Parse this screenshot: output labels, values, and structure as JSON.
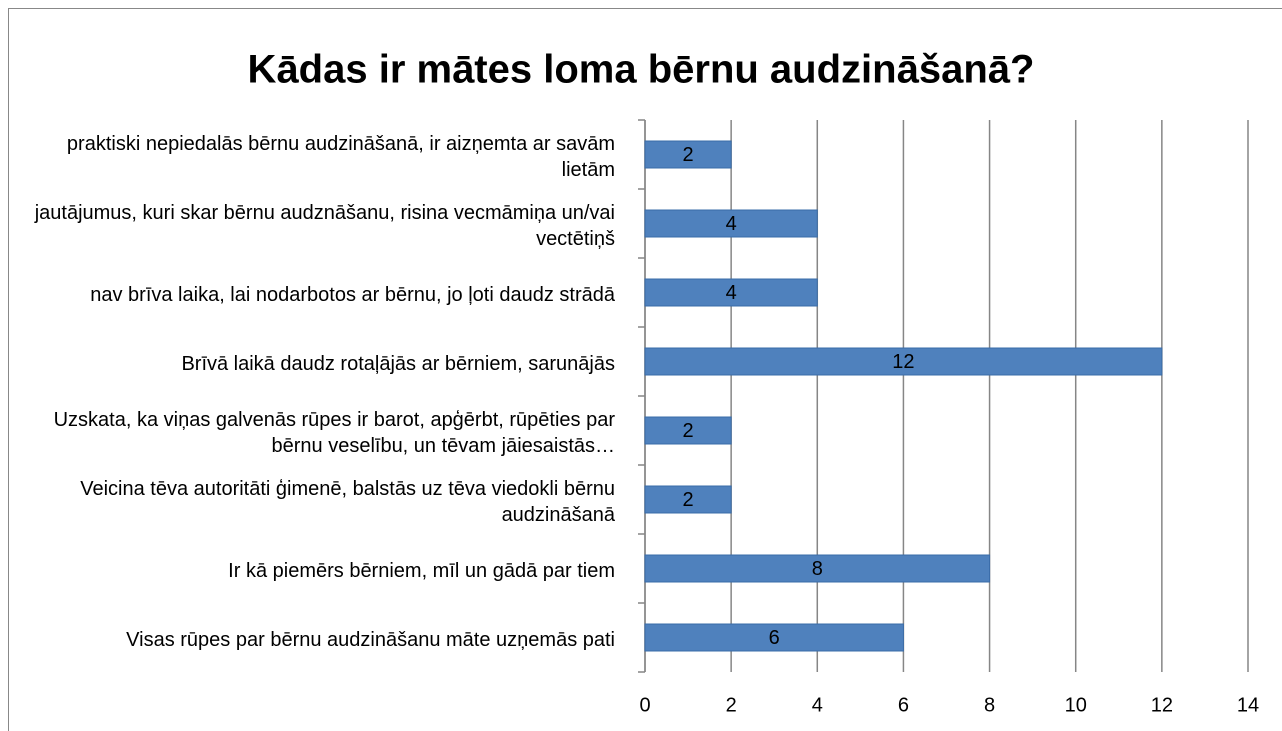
{
  "chart_data": {
    "type": "bar",
    "orientation": "horizontal",
    "title": "Kādas ir mātes loma bērnu audzināšanā?",
    "categories": [
      "praktiski nepiedalās bērnu audzināšanā, ir aizņemta ar savām lietām",
      "jautājumus, kuri skar bērnu audznāšanu, risina vecmāmiņa un/vai vectētiņš",
      "nav brīva laika, lai nodarbotos ar bērnu, jo ļoti daudz strādā",
      "Brīvā laikā daudz rotaļājās ar bērniem, sarunājās",
      "Uzskata, ka viņas galvenās rūpes ir barot, apģērbt, rūpēties par  bērnu veselību, un tēvam jāiesaistās…",
      "Veicina tēva autoritāti ģimenē, balstās uz tēva viedokli bērnu audzināšanā",
      "Ir kā piemērs bērniem, mīl un gādā par tiem",
      "Visas rūpes par bērnu audzināšanu māte uzņemās pati"
    ],
    "values": [
      2,
      4,
      4,
      12,
      2,
      2,
      8,
      6
    ],
    "color": "#4f81bd",
    "xlim": [
      0,
      14
    ],
    "xticks": [
      0,
      2,
      4,
      6,
      8,
      10,
      12,
      14
    ],
    "grid": true
  }
}
